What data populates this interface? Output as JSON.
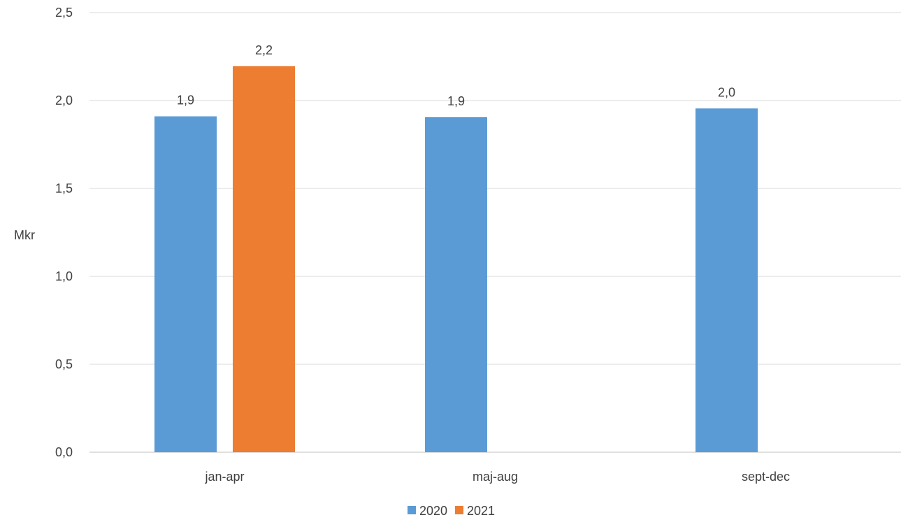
{
  "chart_data": {
    "type": "bar",
    "categories": [
      "jan-apr",
      "maj-aug",
      "sept-dec"
    ],
    "series": [
      {
        "name": "2020",
        "color": "#5B9BD5",
        "values": [
          1.91,
          1.905,
          1.955
        ],
        "labels": [
          "1,9",
          "1,9",
          "2,0"
        ]
      },
      {
        "name": "2021",
        "color": "#ED7D31",
        "values": [
          2.195,
          null,
          null
        ],
        "labels": [
          "2,2",
          null,
          null
        ]
      }
    ],
    "ylabel": "Mkr",
    "ylim": [
      0,
      2.5
    ],
    "yticks": [
      0,
      0.5,
      1.0,
      1.5,
      2.0,
      2.5
    ],
    "ytick_labels": [
      "0,0",
      "0,5",
      "1,0",
      "1,5",
      "2,0",
      "2,5"
    ],
    "grid": true,
    "legend_position": "bottom"
  }
}
